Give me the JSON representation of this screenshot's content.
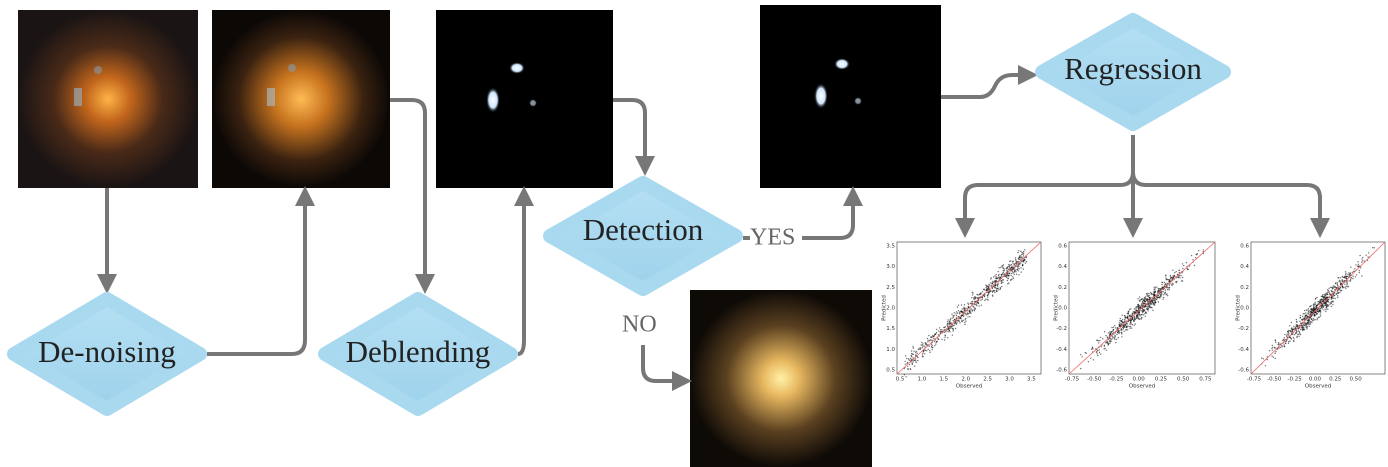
{
  "nodes": [
    {
      "label": "De-noising"
    },
    {
      "label": "Deblending"
    },
    {
      "label": "Detection"
    },
    {
      "label": "Regression"
    }
  ],
  "edges": [
    {
      "label": "YES"
    },
    {
      "label": "NO"
    }
  ],
  "plots": [
    {
      "x_label": "Observed",
      "y_label": "Predicted",
      "x_ticks": [
        "0.5",
        "1.0",
        "1.5",
        "2.0",
        "2.5",
        "3.0",
        "3.5"
      ],
      "y_ticks": [
        "0.5",
        "1.0",
        "1.5",
        "2.0",
        "2.5",
        "3.0",
        "3.5"
      ]
    },
    {
      "x_label": "Observed",
      "y_label": "Predicted",
      "x_ticks": [
        "-0.75",
        "-0.50",
        "-0.25",
        "0.00",
        "0.25",
        "0.50",
        "0.75"
      ],
      "y_ticks": [
        "-0.6",
        "-0.4",
        "-0.2",
        "0.0",
        "0.2",
        "0.4",
        "0.6"
      ]
    },
    {
      "x_label": "Observed",
      "y_label": "Predicted",
      "x_ticks": [
        "-0.75",
        "-0.50",
        "-0.25",
        "0.00",
        "0.25",
        "0.50"
      ],
      "y_ticks": [
        "-0.6",
        "-0.4",
        "-0.2",
        "0.0",
        "0.2",
        "0.4",
        "0.6"
      ]
    }
  ]
}
